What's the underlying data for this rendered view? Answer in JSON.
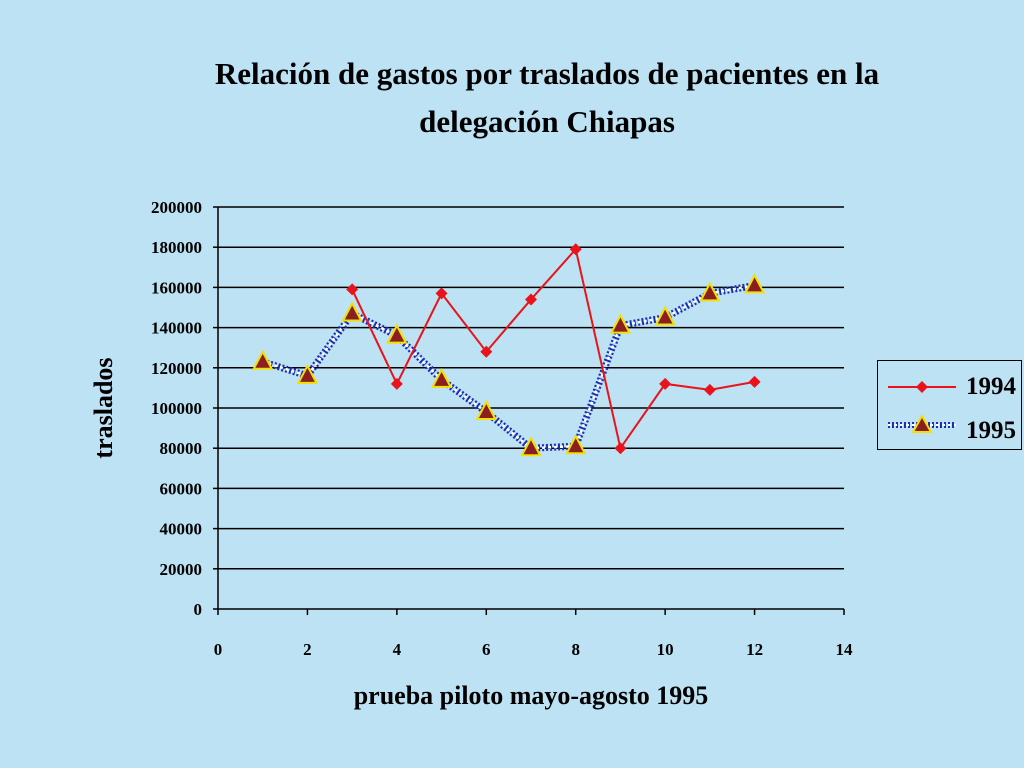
{
  "colors": {
    "background": "#bde2f3",
    "series_1994": "#e8131b",
    "series_1995_line": "#1a2fb5",
    "marker_1995_fill": "#8b1e1e",
    "marker_1995_stroke": "#f2e000",
    "gridline": "#000000"
  },
  "chart_data": {
    "type": "line",
    "title_lines": [
      "Relación de gastos por traslados de pacientes en la",
      "delegación Chiapas"
    ],
    "xlabel": "prueba piloto mayo-agosto 1995",
    "ylabel": "traslados",
    "xlim": [
      0,
      14
    ],
    "ylim": [
      0,
      200000
    ],
    "xticks": [
      0,
      2,
      4,
      6,
      8,
      10,
      12,
      14
    ],
    "yticks": [
      0,
      20000,
      40000,
      60000,
      80000,
      100000,
      120000,
      140000,
      160000,
      180000,
      200000
    ],
    "grid": "horizontal",
    "legend_position": "right",
    "series": [
      {
        "name": "1994",
        "marker": "diamond",
        "color": "#e8131b",
        "x": [
          3,
          4,
          5,
          6,
          7,
          8,
          9,
          10,
          11,
          12
        ],
        "y": [
          159000,
          112000,
          157000,
          128000,
          154000,
          179000,
          80000,
          112000,
          109000,
          113000
        ]
      },
      {
        "name": "1995",
        "marker": "triangle",
        "color": "#1a2fb5",
        "x": [
          1,
          2,
          3,
          4,
          5,
          6,
          7,
          8,
          9,
          10,
          11,
          12
        ],
        "y": [
          123000,
          116000,
          147000,
          136000,
          114000,
          98000,
          80000,
          81000,
          141000,
          145000,
          157000,
          161000
        ]
      }
    ]
  }
}
